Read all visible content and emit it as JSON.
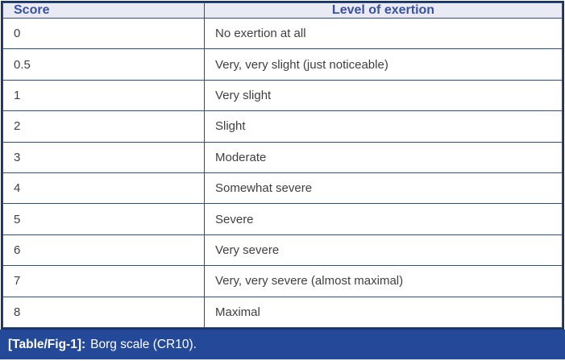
{
  "table": {
    "columns": [
      {
        "label": "Score"
      },
      {
        "label": "Level of exertion"
      }
    ],
    "rows": [
      {
        "score": "0",
        "level": "No exertion at all"
      },
      {
        "score": "0.5",
        "level": "Very, very slight (just noticeable)"
      },
      {
        "score": "1",
        "level": "Very slight"
      },
      {
        "score": "2",
        "level": "Slight"
      },
      {
        "score": "3",
        "level": "Moderate"
      },
      {
        "score": "4",
        "level": "Somewhat severe"
      },
      {
        "score": "5",
        "level": "Severe"
      },
      {
        "score": "6",
        "level": "Very severe"
      },
      {
        "score": "7",
        "level": "Very, very severe (almost maximal)"
      },
      {
        "score": "8",
        "level": "Maximal"
      }
    ]
  },
  "caption": {
    "label": "[Table/Fig-1]:",
    "text": "Borg scale (CR10)."
  },
  "colors": {
    "header_bg": "#e9eaf3",
    "header_text": "#3a51a3",
    "body_text": "#3f3f3f",
    "border_inner": "#2f4e7c",
    "border_outer": "#1c3260",
    "caption_bg": "#254999",
    "caption_text": "#ffffff"
  }
}
